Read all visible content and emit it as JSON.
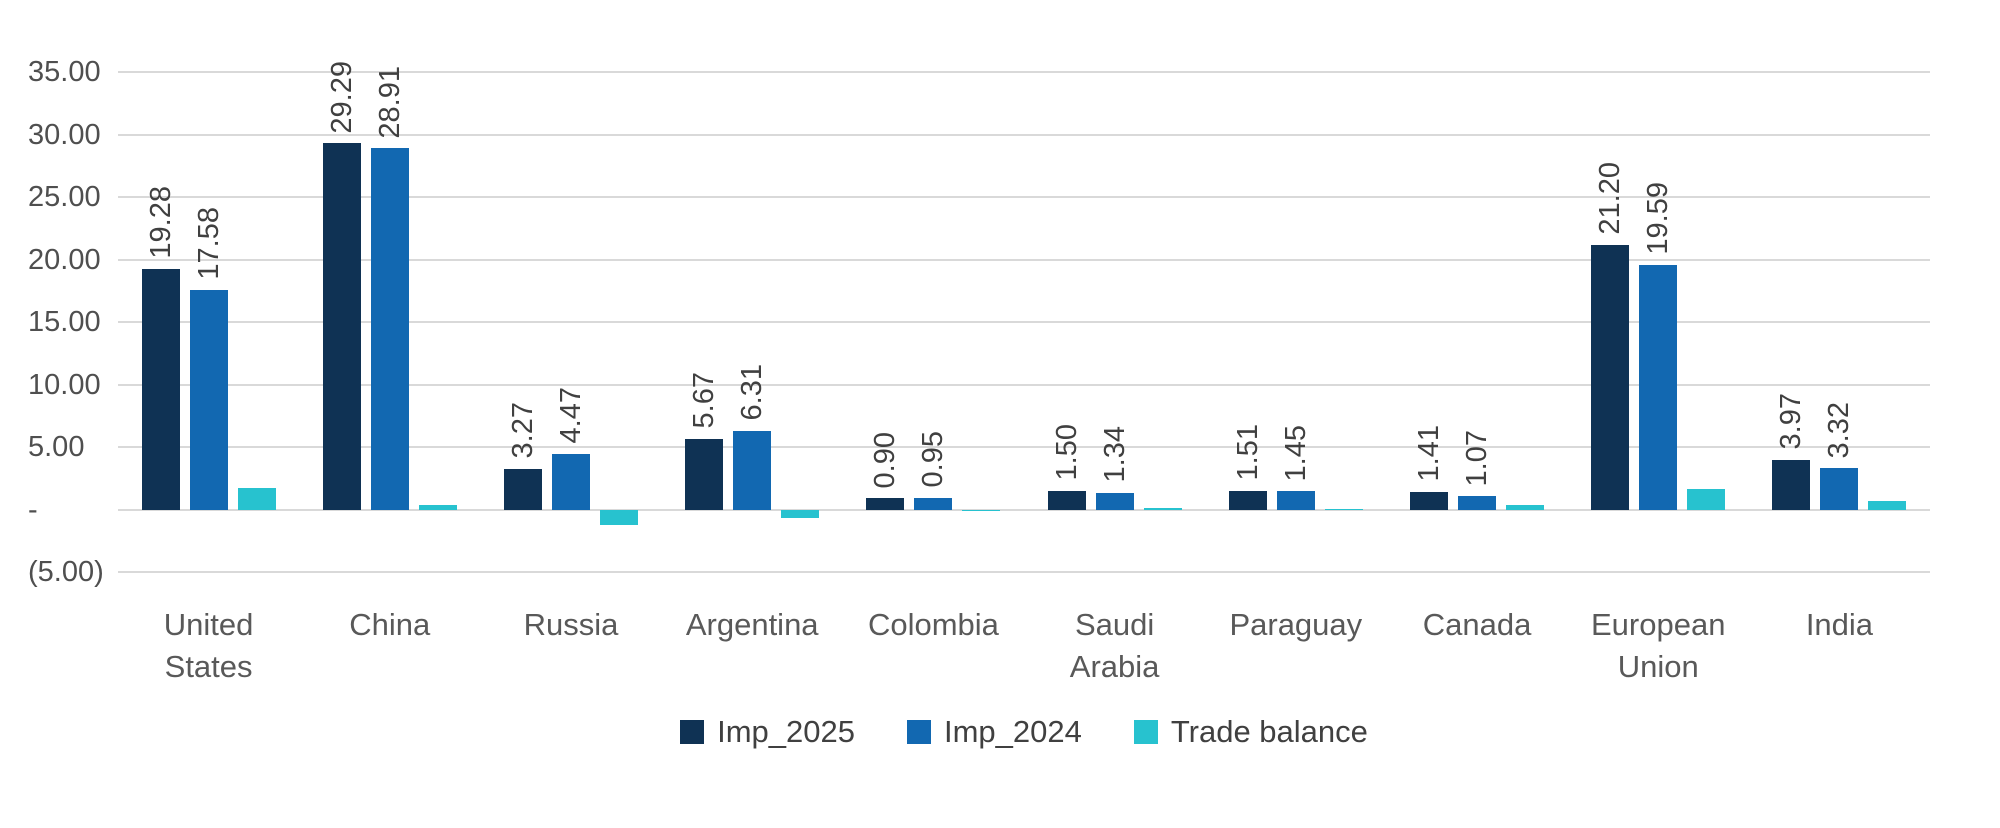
{
  "chart_data": {
    "type": "bar",
    "title": "",
    "xlabel": "",
    "ylabel": "",
    "grid": true,
    "ylim": [
      -5,
      35
    ],
    "categories": [
      "United States",
      "China",
      "Russia",
      "Argentina",
      "Colombia",
      "Saudi Arabia",
      "Paraguay",
      "Canada",
      "European Union",
      "India"
    ],
    "series": [
      {
        "name": "Imp_2025",
        "color": "#0f3254",
        "show_labels": true,
        "values": [
          19.28,
          29.29,
          3.27,
          5.67,
          0.9,
          1.5,
          1.51,
          1.41,
          21.2,
          3.97
        ],
        "data_labels": [
          "19.28",
          "29.29",
          "3.27",
          "5.67",
          "0.90",
          "1.50",
          "1.51",
          "1.41",
          "21.20",
          "3.97"
        ]
      },
      {
        "name": "Imp_2024",
        "color": "#1268b1",
        "show_labels": true,
        "values": [
          17.58,
          28.91,
          4.47,
          6.31,
          0.95,
          1.34,
          1.45,
          1.07,
          19.59,
          3.32
        ],
        "data_labels": [
          "17.58",
          "28.91",
          "4.47",
          "6.31",
          "0.95",
          "1.34",
          "1.45",
          "1.07",
          "19.59",
          "3.32"
        ]
      },
      {
        "name": "Trade balance",
        "color": "#27c2cf",
        "show_labels": false,
        "values": [
          1.7,
          0.38,
          -1.2,
          -0.64,
          -0.05,
          0.16,
          0.06,
          0.34,
          1.61,
          0.65
        ],
        "data_labels": []
      }
    ],
    "y_axis": {
      "min": -5,
      "max": 35,
      "step": 5,
      "ticks": [
        {
          "value": 35,
          "label": "35.00"
        },
        {
          "value": 30,
          "label": "30.00"
        },
        {
          "value": 25,
          "label": "25.00"
        },
        {
          "value": 20,
          "label": "20.00"
        },
        {
          "value": 15,
          "label": "15.00"
        },
        {
          "value": 10,
          "label": "10.00"
        },
        {
          "value": 5,
          "label": "5.00"
        },
        {
          "value": 0,
          "label": "-"
        },
        {
          "value": -5,
          "label": "(5.00)"
        }
      ]
    },
    "legend": {
      "position": "bottom",
      "entries": [
        "Imp_2025",
        "Imp_2024",
        "Trade balance"
      ]
    }
  }
}
